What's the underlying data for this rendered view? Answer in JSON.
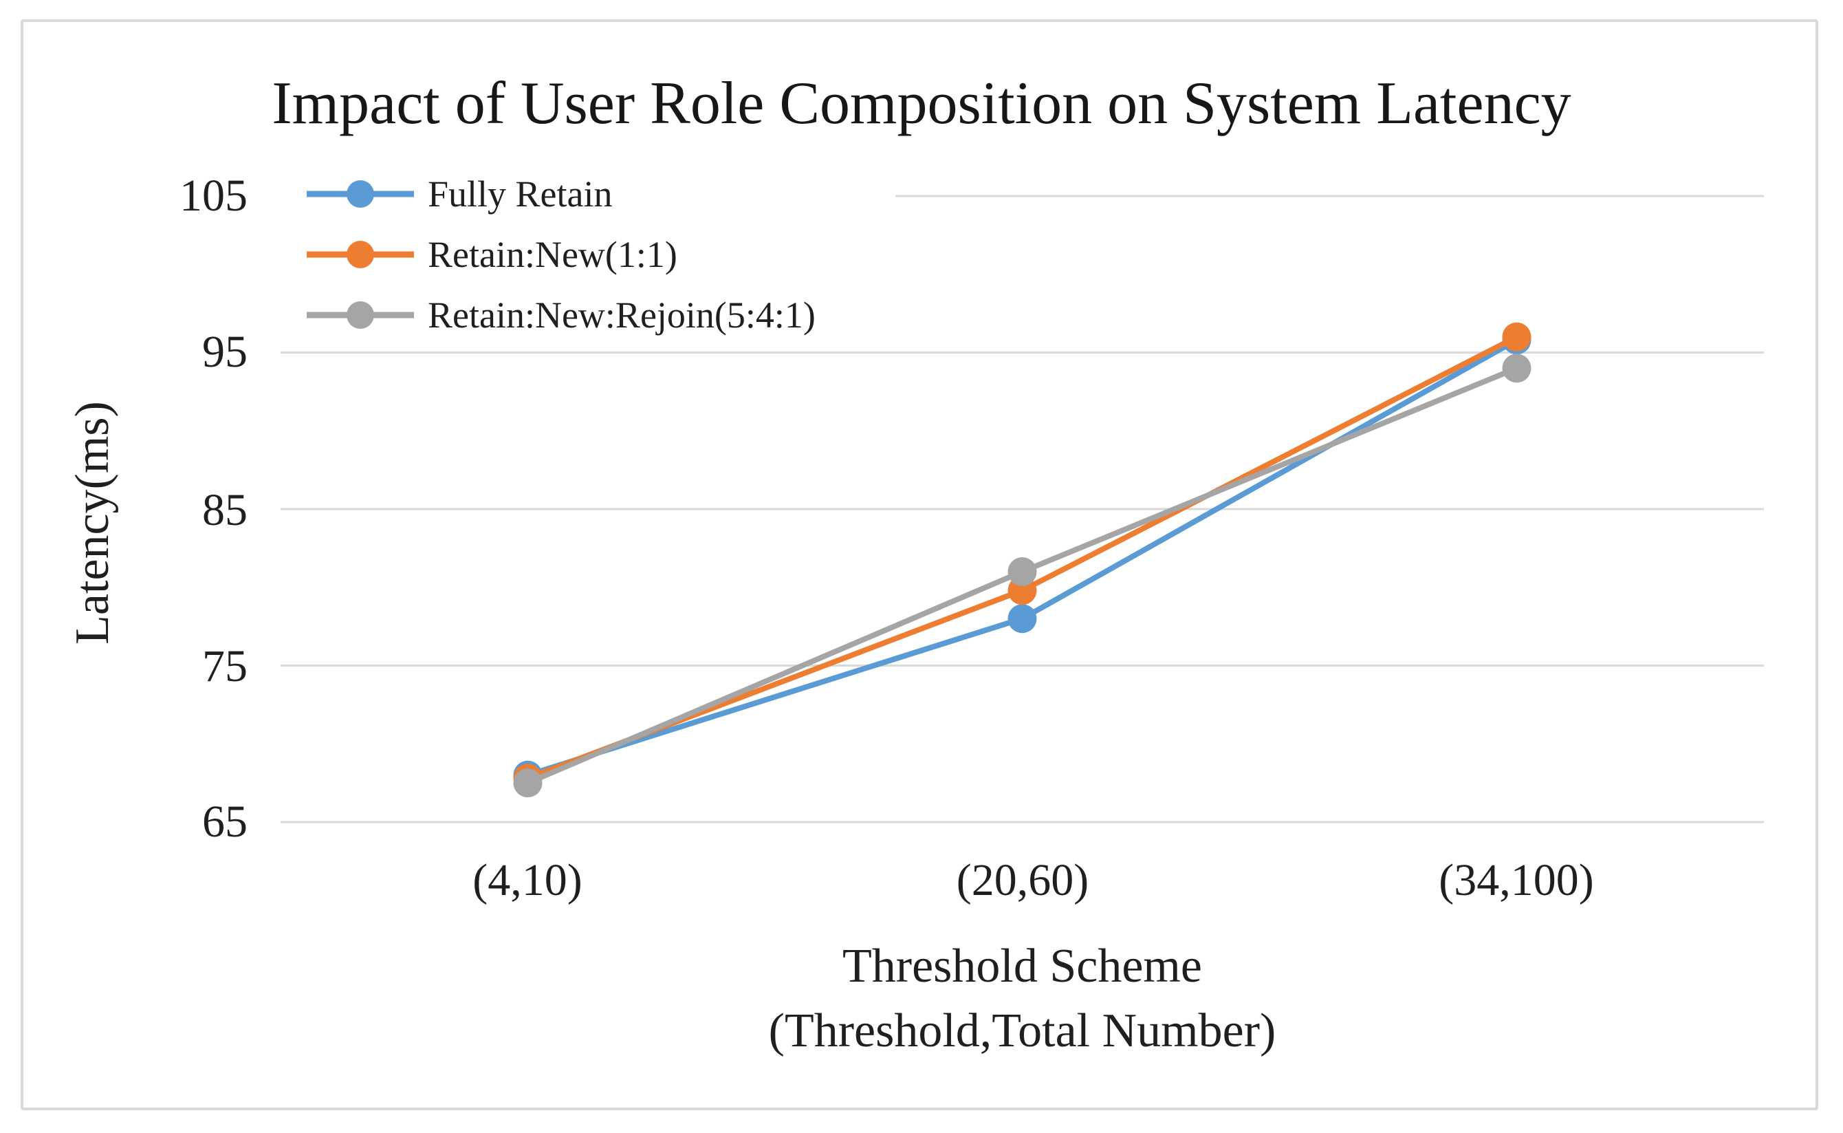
{
  "chart_data": {
    "type": "line",
    "title": "Impact of User Role Composition on System Latency",
    "xlabel_line1": "Threshold Scheme",
    "xlabel_line2": "(Threshold,Total Number)",
    "ylabel": "Latency(ms)",
    "categories": [
      "(4,10)",
      "(20,60)",
      "(34,100)"
    ],
    "y_ticks": [
      65,
      75,
      85,
      95,
      105
    ],
    "ylim": [
      65,
      105
    ],
    "grid": "horizontal-only",
    "legend_position": "top-left-inside",
    "gridline_color": "#d9d9d9",
    "text_color": "#1f1f1f",
    "series": [
      {
        "name": "Fully Retain",
        "color": "#5B9BD5",
        "values": [
          68.0,
          78.0,
          95.8
        ]
      },
      {
        "name": "Retain:New(1:1)",
        "color": "#ED7D31",
        "values": [
          67.8,
          79.8,
          96.0
        ]
      },
      {
        "name": "Retain:New:Rejoin(5:4:1)",
        "color": "#A5A5A5",
        "values": [
          67.5,
          81.0,
          94.0
        ]
      }
    ]
  }
}
